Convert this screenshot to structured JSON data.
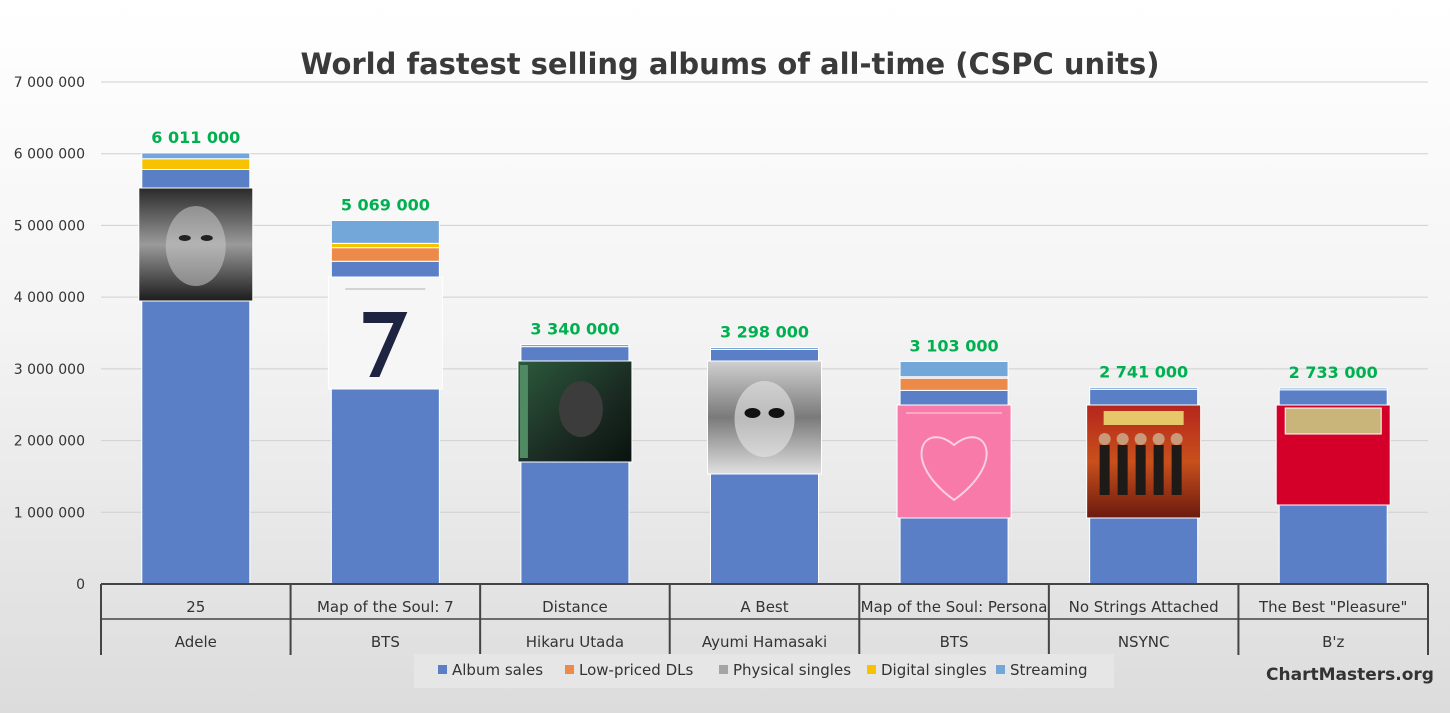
{
  "colors": {
    "album": "#5a7fc7",
    "lowpriced": "#ec8a49",
    "physical": "#a5a5a5",
    "digital": "#f7c200",
    "streaming": "#74a7d9",
    "total_label": "#00b050"
  },
  "watermark": "ChartMasters.org",
  "chart_data": {
    "type": "bar",
    "stacked": true,
    "title": "World fastest selling albums of all-time (CSPC units)",
    "ylim": [
      0,
      7000000
    ],
    "yticks": [
      0,
      1000000,
      2000000,
      3000000,
      4000000,
      5000000,
      6000000,
      7000000
    ],
    "ytick_labels": [
      "0",
      "1 000 000",
      "2 000 000",
      "3 000 000",
      "4 000 000",
      "5 000 000",
      "6 000 000",
      "7 000 000"
    ],
    "grid": true,
    "legend_position": "bottom",
    "categories": [
      {
        "album": "25",
        "artist": "Adele",
        "cover": "adele-25-cover",
        "total_label": "6 011 000"
      },
      {
        "album": "Map of the Soul: 7",
        "artist": "BTS",
        "cover": "bts-mots7-cover",
        "total_label": "5 069 000"
      },
      {
        "album": "Distance",
        "artist": "Hikaru Utada",
        "cover": "utada-distance-cover",
        "total_label": "3 340 000"
      },
      {
        "album": "A Best",
        "artist": "Ayumi Hamasaki",
        "cover": "hamasaki-abest-cover",
        "total_label": "3 298 000"
      },
      {
        "album": "Map of the Soul: Persona",
        "artist": "BTS",
        "cover": "bts-persona-cover",
        "total_label": "3 103 000"
      },
      {
        "album": "No Strings Attached",
        "artist": "NSYNC",
        "cover": "nsync-nsa-cover",
        "total_label": "2 741 000"
      },
      {
        "album": "The Best \"Pleasure\"",
        "artist": "B'z",
        "cover": "bz-pleasure-cover",
        "total_label": "2 733 000"
      }
    ],
    "totals": [
      6011000,
      5069000,
      3340000,
      3298000,
      3103000,
      2741000,
      2733000
    ],
    "series": [
      {
        "name": "Album sales",
        "color_key": "album",
        "values": [
          5780000,
          4500000,
          3310000,
          3270000,
          2700000,
          2715000,
          2708000
        ]
      },
      {
        "name": "Low-priced DLs",
        "color_key": "lowpriced",
        "values": [
          0,
          190000,
          0,
          0,
          170000,
          0,
          0
        ]
      },
      {
        "name": "Physical singles",
        "color_key": "physical",
        "values": [
          0,
          0,
          0,
          0,
          0,
          0,
          0
        ]
      },
      {
        "name": "Digital singles",
        "color_key": "digital",
        "values": [
          150000,
          60000,
          0,
          0,
          20000,
          0,
          0
        ]
      },
      {
        "name": "Streaming",
        "color_key": "streaming",
        "values": [
          81000,
          319000,
          30000,
          28000,
          213000,
          26000,
          25000
        ]
      }
    ]
  }
}
